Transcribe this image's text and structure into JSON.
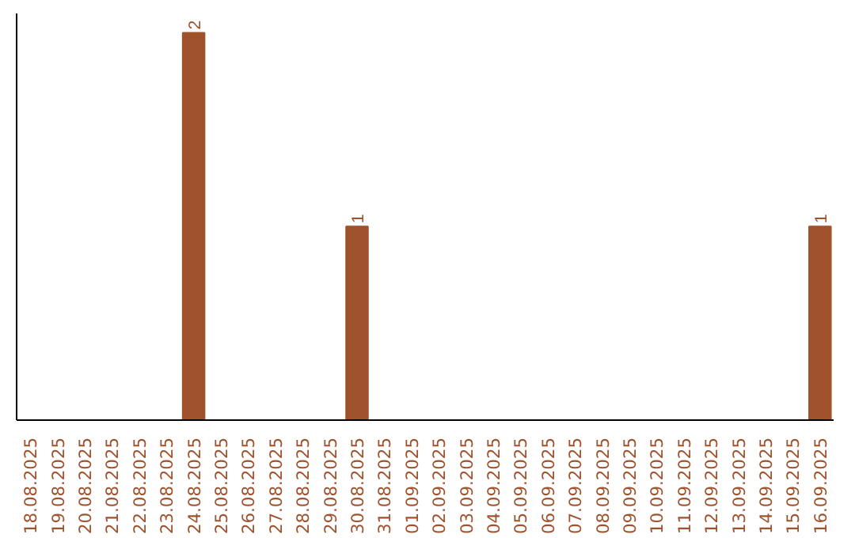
{
  "chart_data": {
    "type": "bar",
    "categories": [
      "18.08.2025",
      "19.08.2025",
      "20.08.2025",
      "21.08.2025",
      "22.08.2025",
      "23.08.2025",
      "24.08.2025",
      "25.08.2025",
      "26.08.2025",
      "27.08.2025",
      "28.08.2025",
      "29.08.2025",
      "30.08.2025",
      "31.08.2025",
      "01.09.2025",
      "02.09.2025",
      "03.09.2025",
      "04.09.2025",
      "05.09.2025",
      "06.09.2025",
      "07.09.2025",
      "08.09.2025",
      "09.09.2025",
      "10.09.2025",
      "11.09.2025",
      "12.09.2025",
      "13.09.2025",
      "14.09.2025",
      "15.09.2025",
      "16.09.2025"
    ],
    "values": [
      0,
      0,
      0,
      0,
      0,
      0,
      2,
      0,
      0,
      0,
      0,
      0,
      1,
      0,
      0,
      0,
      0,
      0,
      0,
      0,
      0,
      0,
      0,
      0,
      0,
      0,
      0,
      0,
      0,
      1
    ],
    "value_labels": [
      null,
      null,
      null,
      null,
      null,
      null,
      "2",
      null,
      null,
      null,
      null,
      null,
      "1",
      null,
      null,
      null,
      null,
      null,
      null,
      null,
      null,
      null,
      null,
      null,
      null,
      null,
      null,
      null,
      null,
      "1"
    ],
    "color": "#a0522d",
    "ylim": [
      0,
      2.1
    ],
    "tick_labels": "x",
    "grid": false
  }
}
